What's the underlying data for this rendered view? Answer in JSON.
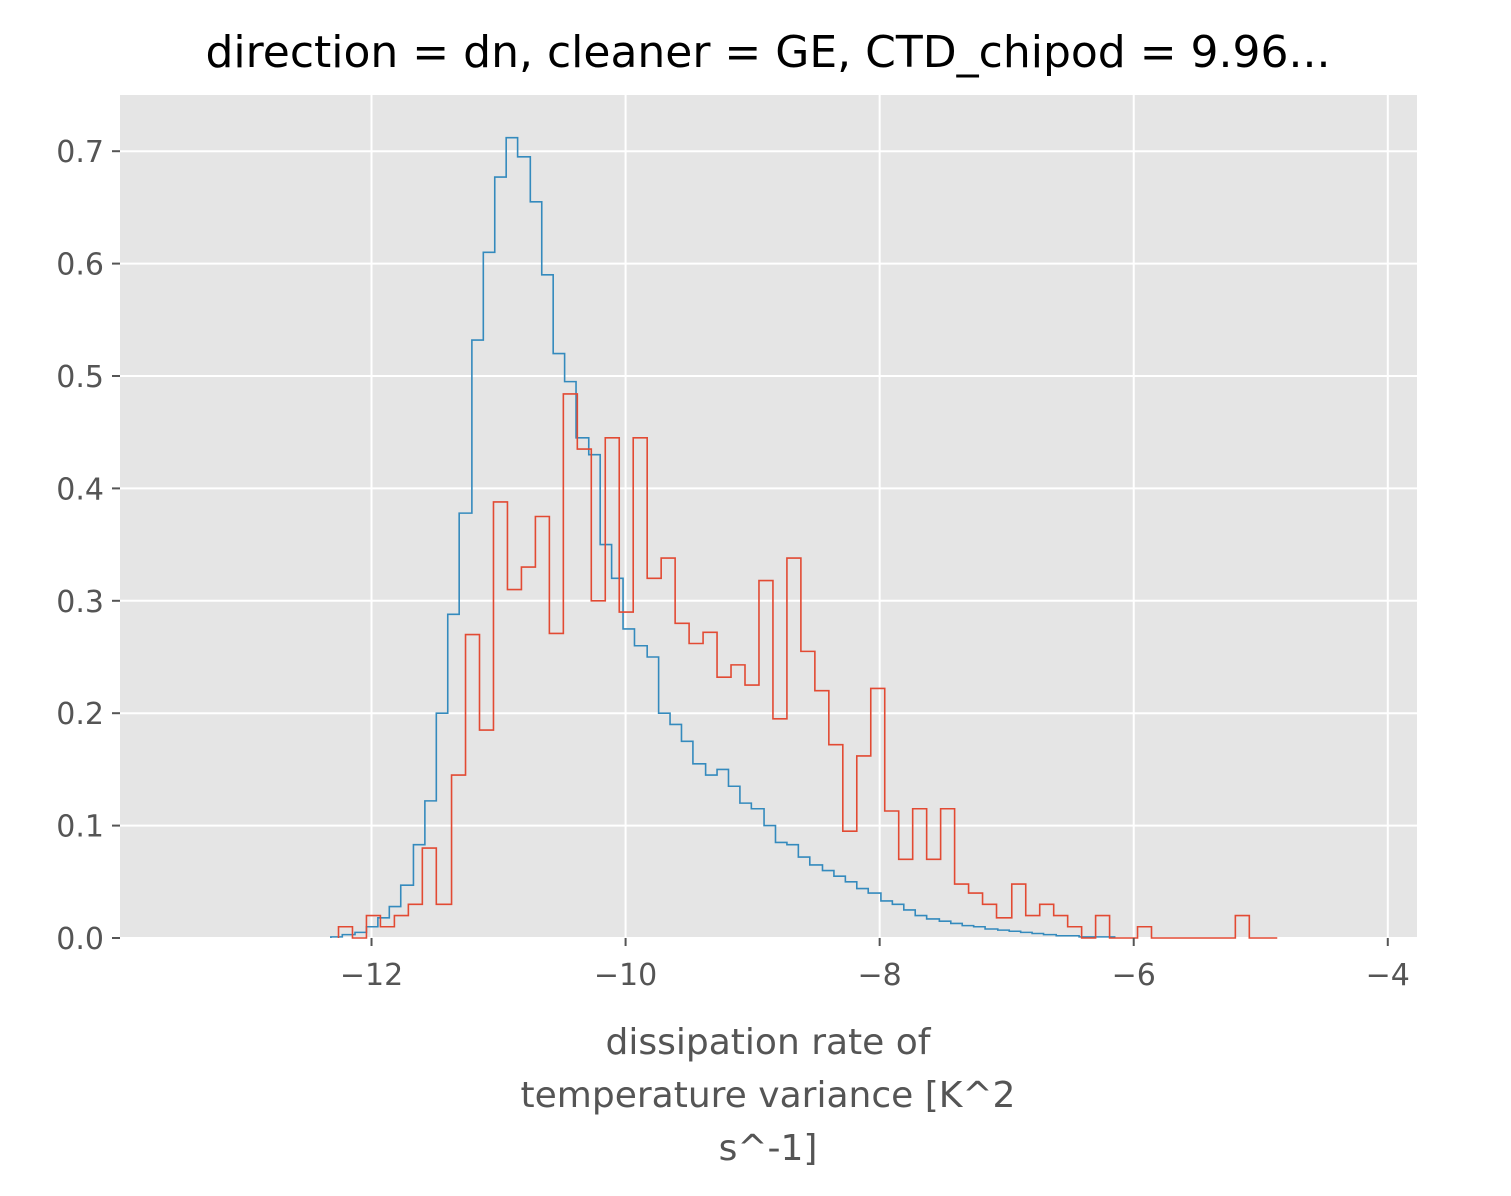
{
  "chart_data": {
    "type": "histogram",
    "title": "direction = dn, cleaner = GE, CTD_chipod = 9.96...",
    "xlabel_lines": [
      "dissipation rate of",
      "temperature variance [K^2",
      "s^-1]"
    ],
    "ylabel": "",
    "xlim": [
      -13.98,
      -3.77
    ],
    "ylim": [
      0,
      0.75
    ],
    "xticks": [
      -12,
      -10,
      -8,
      -6,
      -4
    ],
    "xtick_labels": [
      "−12",
      "−10",
      "−8",
      "−6",
      "−4"
    ],
    "yticks": [
      0.0,
      0.1,
      0.2,
      0.3,
      0.4,
      0.5,
      0.6,
      0.7
    ],
    "ytick_labels": [
      "0.0",
      "0.1",
      "0.2",
      "0.3",
      "0.4",
      "0.5",
      "0.6",
      "0.7"
    ],
    "grid": true,
    "legend": false,
    "series": [
      {
        "color": "#348ABD",
        "edges": [
          -12.32,
          -12.23,
          -12.13,
          -12.04,
          -11.95,
          -11.86,
          -11.77,
          -11.67,
          -11.58,
          -11.49,
          -11.4,
          -11.31,
          -11.21,
          -11.12,
          -11.03,
          -10.94,
          -10.85,
          -10.75,
          -10.66,
          -10.57,
          -10.48,
          -10.39,
          -10.29,
          -10.2,
          -10.11,
          -10.02,
          -9.93,
          -9.83,
          -9.74,
          -9.65,
          -9.56,
          -9.47,
          -9.37,
          -9.28,
          -9.19,
          -9.1,
          -9.01,
          -8.91,
          -8.82,
          -8.73,
          -8.64,
          -8.55,
          -8.45,
          -8.36,
          -8.27,
          -8.18,
          -8.09,
          -7.99,
          -7.9,
          -7.81,
          -7.72,
          -7.63,
          -7.53,
          -7.44,
          -7.35,
          -7.26,
          -7.17,
          -7.07,
          -6.98,
          -6.89,
          -6.8,
          -6.71,
          -6.61,
          -6.52,
          -6.43,
          -6.34,
          -6.25,
          -6.15
        ],
        "values": [
          0.001,
          0.003,
          0.005,
          0.01,
          0.018,
          0.028,
          0.047,
          0.083,
          0.122,
          0.2,
          0.288,
          0.378,
          0.532,
          0.61,
          0.677,
          0.712,
          0.695,
          0.655,
          0.59,
          0.52,
          0.495,
          0.445,
          0.43,
          0.35,
          0.32,
          0.275,
          0.26,
          0.25,
          0.2,
          0.19,
          0.175,
          0.155,
          0.145,
          0.15,
          0.135,
          0.12,
          0.115,
          0.1,
          0.085,
          0.083,
          0.072,
          0.065,
          0.06,
          0.055,
          0.05,
          0.044,
          0.04,
          0.033,
          0.03,
          0.025,
          0.02,
          0.017,
          0.015,
          0.013,
          0.011,
          0.01,
          0.008,
          0.007,
          0.006,
          0.005,
          0.004,
          0.003,
          0.002,
          0.002,
          0.001,
          0.001,
          0.001
        ]
      },
      {
        "color": "#E24A33",
        "edges": [
          -12.26,
          -12.15,
          -12.04,
          -11.93,
          -11.82,
          -11.71,
          -11.6,
          -11.49,
          -11.37,
          -11.26,
          -11.15,
          -11.04,
          -10.93,
          -10.82,
          -10.71,
          -10.6,
          -10.49,
          -10.38,
          -10.27,
          -10.16,
          -10.05,
          -9.94,
          -9.83,
          -9.72,
          -9.61,
          -9.5,
          -9.39,
          -9.28,
          -9.17,
          -9.06,
          -8.95,
          -8.84,
          -8.73,
          -8.62,
          -8.51,
          -8.4,
          -8.29,
          -8.18,
          -8.07,
          -7.96,
          -7.85,
          -7.74,
          -7.63,
          -7.52,
          -7.41,
          -7.3,
          -7.19,
          -7.08,
          -6.96,
          -6.85,
          -6.74,
          -6.63,
          -6.52,
          -6.41,
          -6.3,
          -6.19,
          -6.08,
          -5.97,
          -5.86,
          -5.75,
          -5.64,
          -5.53,
          -5.42,
          -5.31,
          -5.2,
          -5.09,
          -4.98,
          -4.87
        ],
        "values": [
          0.01,
          0.0,
          0.02,
          0.01,
          0.02,
          0.03,
          0.08,
          0.03,
          0.145,
          0.27,
          0.185,
          0.388,
          0.31,
          0.33,
          0.375,
          0.271,
          0.484,
          0.435,
          0.3,
          0.445,
          0.29,
          0.445,
          0.32,
          0.338,
          0.28,
          0.262,
          0.272,
          0.232,
          0.243,
          0.225,
          0.318,
          0.195,
          0.338,
          0.255,
          0.22,
          0.172,
          0.095,
          0.162,
          0.222,
          0.113,
          0.07,
          0.115,
          0.07,
          0.115,
          0.048,
          0.04,
          0.03,
          0.018,
          0.048,
          0.02,
          0.03,
          0.02,
          0.01,
          0.0,
          0.02,
          0.0,
          0.0,
          0.01,
          0.0,
          0.0,
          0.0,
          0.0,
          0.0,
          0.0,
          0.02,
          0.0,
          0.0
        ]
      }
    ]
  }
}
